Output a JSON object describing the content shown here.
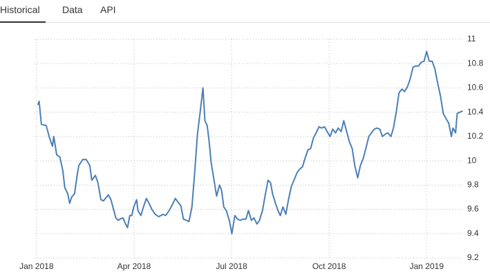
{
  "tabs": [
    "Historical",
    "Data",
    "API"
  ],
  "chart_data": {
    "type": "line",
    "x": [
      0.04,
      0.08,
      0.15,
      0.3,
      0.4,
      0.49,
      0.53,
      0.62,
      0.72,
      0.81,
      0.87,
      0.96,
      1.02,
      1.08,
      1.17,
      1.25,
      1.3,
      1.42,
      1.53,
      1.64,
      1.7,
      1.81,
      1.89,
      1.98,
      2.06,
      2.15,
      2.21,
      2.29,
      2.38,
      2.44,
      2.51,
      2.57,
      2.66,
      2.74,
      2.8,
      2.87,
      2.93,
      2.99,
      3.08,
      3.12,
      3.21,
      3.29,
      3.38,
      3.46,
      3.55,
      3.65,
      3.76,
      3.89,
      3.97,
      4.08,
      4.18,
      4.27,
      4.35,
      4.44,
      4.52,
      4.61,
      4.69,
      4.78,
      4.86,
      4.95,
      5.03,
      5.12,
      5.18,
      5.25,
      5.31,
      5.37,
      5.46,
      5.54,
      5.63,
      5.69,
      5.76,
      5.84,
      5.93,
      6.01,
      6.1,
      6.18,
      6.27,
      6.35,
      6.44,
      6.52,
      6.61,
      6.69,
      6.78,
      6.86,
      6.95,
      7.03,
      7.12,
      7.2,
      7.26,
      7.35,
      7.43,
      7.5,
      7.58,
      7.67,
      7.75,
      7.84,
      7.92,
      8.01,
      8.09,
      8.18,
      8.26,
      8.35,
      8.43,
      8.52,
      8.6,
      8.69,
      8.77,
      8.86,
      8.94,
      9.03,
      9.11,
      9.2,
      9.28,
      9.37,
      9.45,
      9.54,
      9.62,
      9.71,
      9.79,
      9.88,
      9.96,
      10.05,
      10.13,
      10.22,
      10.3,
      10.39,
      10.47,
      10.56,
      10.64,
      10.73,
      10.81,
      10.9,
      10.98,
      11.07,
      11.15,
      11.24,
      11.32,
      11.41,
      11.49,
      11.58,
      11.66,
      11.75,
      11.83,
      11.92,
      12.0,
      12.08,
      12.17,
      12.25,
      12.34,
      12.43,
      12.51,
      12.59,
      12.68,
      12.76,
      12.81,
      12.89,
      12.94,
      13.02,
      13.11
    ],
    "series": [
      {
        "color": "#4a7fb5",
        "values": [
          10.46,
          10.49,
          10.3,
          10.29,
          10.19,
          10.12,
          10.2,
          10.05,
          10.03,
          9.92,
          9.78,
          9.73,
          9.65,
          9.7,
          9.73,
          9.88,
          9.96,
          10.01,
          10.01,
          9.96,
          9.84,
          9.88,
          9.82,
          9.68,
          9.67,
          9.7,
          9.72,
          9.68,
          9.59,
          9.53,
          9.51,
          9.52,
          9.53,
          9.48,
          9.45,
          9.55,
          9.55,
          9.62,
          9.68,
          9.59,
          9.55,
          9.62,
          9.69,
          9.65,
          9.6,
          9.56,
          9.54,
          9.56,
          9.55,
          9.59,
          9.64,
          9.69,
          9.66,
          9.63,
          9.52,
          9.51,
          9.5,
          9.62,
          9.88,
          10.22,
          10.39,
          10.6,
          10.33,
          10.29,
          10.16,
          9.99,
          9.84,
          9.71,
          9.8,
          9.76,
          9.62,
          9.59,
          9.51,
          9.4,
          9.55,
          9.52,
          9.51,
          9.52,
          9.52,
          9.59,
          9.51,
          9.53,
          9.48,
          9.51,
          9.59,
          9.71,
          9.84,
          9.82,
          9.73,
          9.65,
          9.59,
          9.55,
          9.62,
          9.56,
          9.68,
          9.79,
          9.84,
          9.9,
          9.93,
          9.95,
          10.02,
          10.09,
          10.1,
          10.19,
          10.23,
          10.28,
          10.27,
          10.28,
          10.24,
          10.2,
          10.26,
          10.23,
          10.27,
          10.24,
          10.33,
          10.24,
          10.16,
          10.1,
          9.96,
          9.86,
          9.96,
          10.02,
          10.1,
          10.2,
          10.23,
          10.26,
          10.27,
          10.26,
          10.2,
          10.22,
          10.23,
          10.2,
          10.27,
          10.41,
          10.56,
          10.59,
          10.57,
          10.61,
          10.67,
          10.77,
          10.78,
          10.78,
          10.81,
          10.82,
          10.9,
          10.82,
          10.82,
          10.76,
          10.64,
          10.53,
          10.39,
          10.35,
          10.31,
          10.2,
          10.27,
          10.23,
          10.39,
          10.4,
          10.41
        ]
      }
    ],
    "xlim": [
      -0.06,
      13.12
    ],
    "xticks": [
      {
        "value": 0,
        "label": "Jan 2018"
      },
      {
        "value": 3,
        "label": "Apr 2018"
      },
      {
        "value": 6,
        "label": "Jul 2018"
      },
      {
        "value": 9,
        "label": "Oct 2018"
      },
      {
        "value": 12,
        "label": "Jan 2019"
      }
    ],
    "ylim": [
      9.2,
      11
    ],
    "yticks": [
      9.2,
      9.4,
      9.6,
      9.8,
      10,
      10.2,
      10.4,
      10.6,
      10.8,
      11
    ],
    "grid": true
  }
}
